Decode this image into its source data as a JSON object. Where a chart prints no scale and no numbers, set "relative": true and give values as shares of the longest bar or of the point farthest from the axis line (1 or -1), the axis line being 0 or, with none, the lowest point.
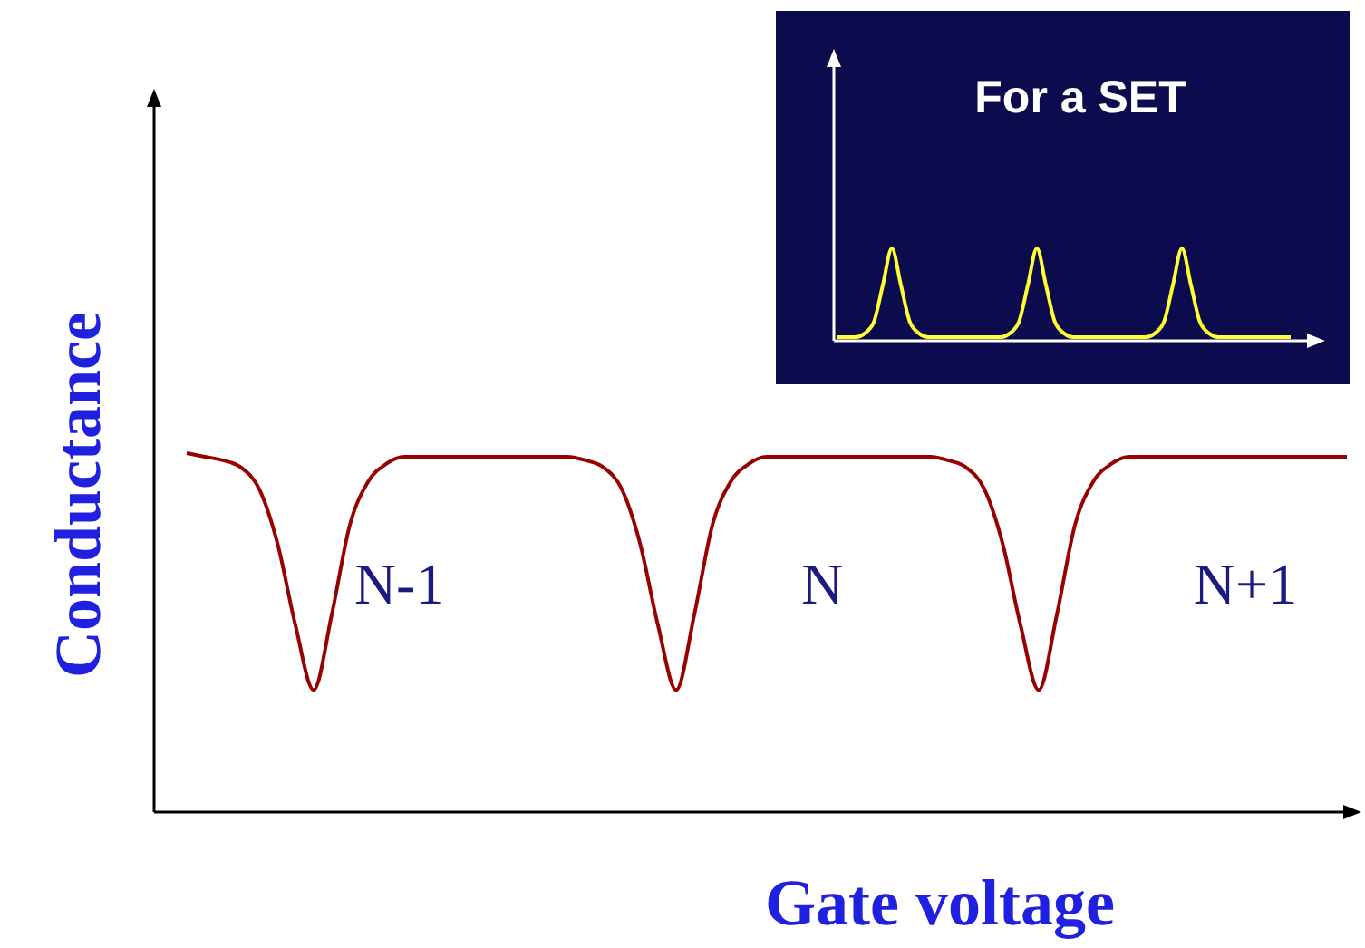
{
  "chart_data": [
    {
      "type": "line",
      "relative": true,
      "xlabel": "Gate voltage",
      "ylabel": "Conductance",
      "line_style": "solid",
      "categories": [
        null,
        null,
        null,
        null,
        null,
        null,
        null,
        null,
        null,
        null,
        null,
        null,
        null,
        null,
        null,
        null,
        null,
        null,
        null,
        null,
        null,
        null,
        null,
        null,
        null,
        null,
        null,
        null,
        null,
        null,
        null,
        null,
        null,
        null,
        null,
        null,
        null,
        null,
        null,
        null,
        null,
        null,
        null,
        null,
        null,
        null,
        null,
        null,
        null,
        null,
        null,
        null,
        null,
        null,
        null,
        null,
        null,
        null,
        null,
        null,
        null,
        null,
        null,
        null,
        null
      ],
      "series": [
        {
          "color": "#990000",
          "values": [
            1,
            0.99,
            0.98,
            0.96,
            0.9,
            0.75,
            0.52,
            0.34,
            0.55,
            0.8,
            0.92,
            0.97,
            0.99,
            0.99,
            0.99,
            0.99,
            0.99,
            0.99,
            0.99,
            0.99,
            0.99,
            0.99,
            0.98,
            0.96,
            0.9,
            0.75,
            0.52,
            0.34,
            0.55,
            0.8,
            0.92,
            0.97,
            0.99,
            0.99,
            0.99,
            0.99,
            0.99,
            0.99,
            0.99,
            0.99,
            0.99,
            0.99,
            0.98,
            0.96,
            0.9,
            0.75,
            0.52,
            0.34,
            0.55,
            0.8,
            0.92,
            0.97,
            0.99,
            0.99,
            0.99,
            0.99,
            0.99,
            0.99,
            0.99,
            0.99,
            0.99,
            0.99,
            0.99,
            0.99,
            0.99
          ]
        }
      ],
      "annotations": [
        "N-1",
        "N",
        "N+1"
      ]
    },
    {
      "type": "line",
      "relative": true,
      "title": "For a SET",
      "line_style": "solid",
      "categories": [
        null,
        null,
        null,
        null,
        null,
        null,
        null,
        null,
        null,
        null,
        null,
        null,
        null,
        null,
        null,
        null,
        null,
        null,
        null,
        null,
        null,
        null,
        null,
        null,
        null,
        null,
        null,
        null,
        null,
        null,
        null,
        null,
        null,
        null,
        null,
        null,
        null,
        null,
        null,
        null,
        null,
        null,
        null,
        null,
        null,
        null,
        null,
        null,
        null,
        null,
        null
      ],
      "series": [
        {
          "color": "#ffff33",
          "values": [
            0.04,
            0.04,
            0.04,
            0.08,
            0.2,
            0.6,
            1,
            0.6,
            0.2,
            0.08,
            0.04,
            0.04,
            0.04,
            0.04,
            0.04,
            0.04,
            0.04,
            0.04,
            0.04,
            0.08,
            0.2,
            0.6,
            1,
            0.6,
            0.2,
            0.08,
            0.04,
            0.04,
            0.04,
            0.04,
            0.04,
            0.04,
            0.04,
            0.04,
            0.04,
            0.08,
            0.2,
            0.6,
            1,
            0.6,
            0.2,
            0.08,
            0.04,
            0.04,
            0.04,
            0.04,
            0.04,
            0.04,
            0.04,
            0.04,
            0.04
          ]
        }
      ]
    }
  ]
}
